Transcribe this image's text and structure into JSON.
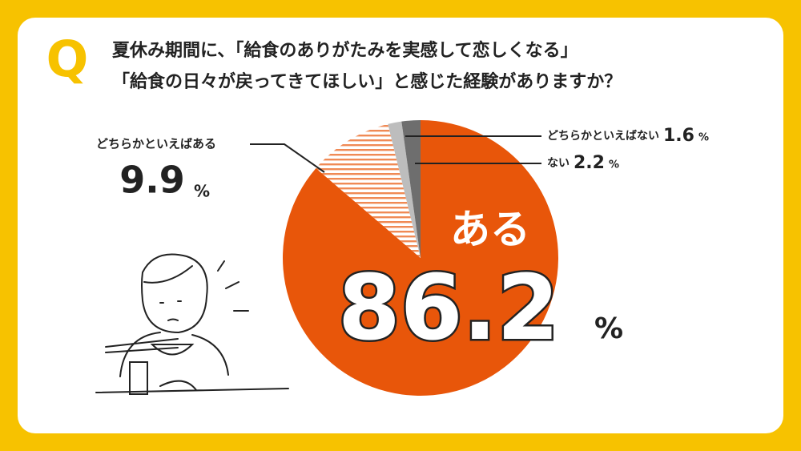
{
  "marker": "Q",
  "chart_data": {
    "type": "pie",
    "title": "夏休み期間に、「給食のありがたみを実感して恋しくなる」",
    "subtitle": "「給食の日々が戻ってきてほしい」と感じた経験がありますか？",
    "categories": [
      "ある",
      "どちらかといえばある",
      "どちらかといえばない",
      "ない"
    ],
    "values": [
      86.2,
      9.9,
      1.6,
      2.2
    ],
    "unit": "%",
    "colors": [
      "#e8560a",
      "striped",
      "#bdbdbd",
      "#6e6e6e"
    ]
  }
}
